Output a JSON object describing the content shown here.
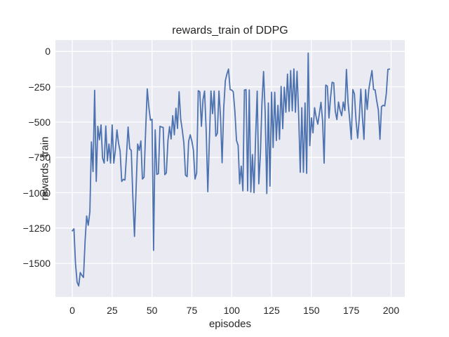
{
  "chart_data": {
    "type": "line",
    "title": "rewards_train of DDPG",
    "xlabel": "episodes",
    "ylabel": "rewards_train",
    "legend": "none",
    "grid": "on",
    "plot_background": "#eaeaf2",
    "grid_color": "#ffffff",
    "line_color": "#4c72b0",
    "text_color": "#262626",
    "xlim": [
      -10.6,
      208.6
    ],
    "ylim": [
      -1738,
      81
    ],
    "x_ticks": [
      {
        "value": 0,
        "label": "0"
      },
      {
        "value": 25,
        "label": "25"
      },
      {
        "value": 50,
        "label": "50"
      },
      {
        "value": 75,
        "label": "75"
      },
      {
        "value": 100,
        "label": "100"
      },
      {
        "value": 125,
        "label": "125"
      },
      {
        "value": 150,
        "label": "150"
      },
      {
        "value": 175,
        "label": "175"
      },
      {
        "value": 200,
        "label": "200"
      }
    ],
    "y_ticks": [
      {
        "value": 0,
        "label": "0"
      },
      {
        "value": -250,
        "label": "−250"
      },
      {
        "value": -500,
        "label": "−500"
      },
      {
        "value": -750,
        "label": "−750"
      },
      {
        "value": -1000,
        "label": "−1000"
      },
      {
        "value": -1250,
        "label": "−1250"
      },
      {
        "value": -1500,
        "label": "−1500"
      }
    ],
    "series": [
      {
        "name": "rewards_train",
        "x_start": 0,
        "x_step": 1,
        "values": [
          -1270,
          -1255,
          -1500,
          -1633,
          -1660,
          -1565,
          -1585,
          -1600,
          -1340,
          -1165,
          -1230,
          -1135,
          -640,
          -850,
          -275,
          -920,
          -530,
          -625,
          -520,
          -755,
          -790,
          -528,
          -775,
          -655,
          -790,
          -520,
          -790,
          -700,
          -555,
          -650,
          -705,
          -920,
          -905,
          -910,
          -737,
          -535,
          -689,
          -700,
          -1036,
          -1309,
          -969,
          -655,
          -700,
          -633,
          -903,
          -890,
          -560,
          -265,
          -390,
          -486,
          -480,
          -1408,
          -555,
          -870,
          -865,
          -530,
          -535,
          -538,
          -872,
          -860,
          -630,
          -532,
          -620,
          -455,
          -590,
          -402,
          -545,
          -285,
          -480,
          -555,
          -650,
          -875,
          -886,
          -635,
          -590,
          -635,
          -700,
          -903,
          -860,
          -278,
          -285,
          -530,
          -340,
          -280,
          -560,
          -993,
          -620,
          -280,
          -440,
          -280,
          -600,
          -580,
          -280,
          -470,
          -788,
          -400,
          -207,
          -158,
          -125,
          -270,
          -273,
          -286,
          -424,
          -630,
          -664,
          -937,
          -812,
          -987,
          -273,
          -270,
          -987,
          -273,
          -995,
          -730,
          -1000,
          -600,
          -281,
          -937,
          -722,
          -365,
          -142,
          -438,
          -1006,
          -365,
          -953,
          -289,
          -680,
          -289,
          -630,
          -381,
          -622,
          -248,
          -547,
          -253,
          -430,
          -160,
          -424,
          -135,
          -420,
          -124,
          -430,
          -140,
          -451,
          -855,
          -398,
          -855,
          -365,
          -863,
          -12,
          -667,
          -470,
          -576,
          -398,
          -465,
          -515,
          -440,
          -360,
          -490,
          -790,
          -238,
          -245,
          -471,
          -330,
          -218,
          -222,
          -424,
          -482,
          -358,
          -418,
          -455,
          -358,
          -418,
          -127,
          -360,
          -480,
          -622,
          -270,
          -300,
          -490,
          -614,
          -480,
          -267,
          -466,
          -622,
          -270,
          -410,
          -270,
          -200,
          -135,
          -270,
          -272,
          -350,
          -415,
          -622,
          -390,
          -381,
          -385,
          -300,
          -127,
          -125
        ]
      }
    ]
  }
}
